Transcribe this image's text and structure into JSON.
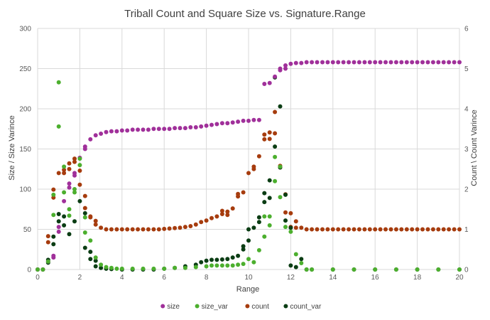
{
  "chart_data": {
    "type": "scatter",
    "title": "Triball Count and Square Size vs. Signature.Range",
    "xlabel": "Range",
    "ylabel_left": "Size / Size Varince",
    "ylabel_right": "Count \\ Count Varince",
    "xlim": [
      0,
      20
    ],
    "ylim_left": [
      0,
      300
    ],
    "ylim_right": [
      0,
      6
    ],
    "x_ticks": [
      "0",
      "2",
      "4",
      "6",
      "8",
      "10",
      "12",
      "14",
      "16",
      "18",
      "20"
    ],
    "y_left_ticks": [
      "0",
      "50",
      "100",
      "150",
      "200",
      "250",
      "300"
    ],
    "y_right_ticks": [
      "0",
      "1",
      "2",
      "3",
      "4",
      "5",
      "6"
    ],
    "grid": true,
    "legend_position": "bottom",
    "series": [
      {
        "name": "size",
        "axis": "left",
        "color": "#a0309a",
        "points": [
          [
            0,
            0
          ],
          [
            0.25,
            0
          ],
          [
            0.5,
            10
          ],
          [
            0.75,
            15
          ],
          [
            0.75,
            17
          ],
          [
            1,
            53
          ],
          [
            1,
            47
          ],
          [
            1.25,
            85
          ],
          [
            1.5,
            102
          ],
          [
            1.5,
            107
          ],
          [
            1.75,
            120
          ],
          [
            1.75,
            117
          ],
          [
            2,
            139
          ],
          [
            2.25,
            150
          ],
          [
            2.25,
            153
          ],
          [
            2.5,
            162
          ],
          [
            2.75,
            167
          ],
          [
            3,
            169
          ],
          [
            3.25,
            171
          ],
          [
            3.5,
            172
          ],
          [
            3.75,
            172
          ],
          [
            4,
            173
          ],
          [
            4.25,
            173
          ],
          [
            4.5,
            174
          ],
          [
            4.75,
            174
          ],
          [
            5,
            174
          ],
          [
            5.25,
            174
          ],
          [
            5.5,
            175
          ],
          [
            5.75,
            175
          ],
          [
            6,
            175
          ],
          [
            6.25,
            175
          ],
          [
            6.5,
            176
          ],
          [
            6.75,
            176
          ],
          [
            7,
            176
          ],
          [
            7.25,
            177
          ],
          [
            7.5,
            177
          ],
          [
            7.75,
            178
          ],
          [
            8,
            179
          ],
          [
            8.25,
            180
          ],
          [
            8.5,
            181
          ],
          [
            8.75,
            182
          ],
          [
            9,
            182
          ],
          [
            9.25,
            183
          ],
          [
            9.5,
            184
          ],
          [
            9.75,
            185
          ],
          [
            10,
            185
          ],
          [
            10.25,
            186
          ],
          [
            10.5,
            186
          ],
          [
            10.75,
            231
          ],
          [
            11,
            232
          ],
          [
            11.25,
            240
          ],
          [
            11.5,
            250
          ],
          [
            11.5,
            248
          ],
          [
            11.75,
            254
          ],
          [
            11.75,
            250
          ],
          [
            12,
            256
          ],
          [
            12.25,
            257
          ],
          [
            12.5,
            257
          ],
          [
            12.75,
            258
          ],
          [
            13,
            258
          ],
          [
            13.25,
            258
          ],
          [
            13.5,
            258
          ],
          [
            13.75,
            258
          ],
          [
            14,
            258
          ],
          [
            14.25,
            258
          ],
          [
            14.5,
            258
          ],
          [
            14.75,
            258
          ],
          [
            15,
            258
          ],
          [
            15.25,
            258
          ],
          [
            15.5,
            258
          ],
          [
            15.75,
            258
          ],
          [
            16,
            258
          ],
          [
            16.25,
            258
          ],
          [
            16.5,
            258
          ],
          [
            16.75,
            258
          ],
          [
            17,
            258
          ],
          [
            17.25,
            258
          ],
          [
            17.5,
            258
          ],
          [
            17.75,
            258
          ],
          [
            18,
            258
          ],
          [
            18.25,
            258
          ],
          [
            18.5,
            258
          ],
          [
            18.75,
            258
          ],
          [
            19,
            258
          ],
          [
            19.25,
            258
          ],
          [
            19.5,
            258
          ],
          [
            19.75,
            258
          ],
          [
            20,
            258
          ]
        ]
      },
      {
        "name": "size_var",
        "axis": "left",
        "color": "#4caf2e",
        "points": [
          [
            0,
            0
          ],
          [
            0.25,
            0
          ],
          [
            0.5,
            10
          ],
          [
            0.75,
            68
          ],
          [
            0.75,
            93
          ],
          [
            1,
            233
          ],
          [
            1,
            178
          ],
          [
            1.25,
            128
          ],
          [
            1.25,
            96
          ],
          [
            1.5,
            75
          ],
          [
            1.5,
            67
          ],
          [
            1.75,
            96
          ],
          [
            1.75,
            100
          ],
          [
            2,
            138
          ],
          [
            2,
            130
          ],
          [
            2.25,
            46
          ],
          [
            2.25,
            65
          ],
          [
            2.5,
            36
          ],
          [
            2.75,
            15
          ],
          [
            3,
            6
          ],
          [
            3.25,
            3
          ],
          [
            3.5,
            2
          ],
          [
            3.75,
            1
          ],
          [
            4,
            1
          ],
          [
            4.5,
            1
          ],
          [
            5,
            1
          ],
          [
            5.5,
            1
          ],
          [
            6,
            1
          ],
          [
            6.5,
            2
          ],
          [
            7,
            2
          ],
          [
            7.5,
            3
          ],
          [
            8,
            4
          ],
          [
            8.25,
            5
          ],
          [
            8.5,
            5
          ],
          [
            8.75,
            5
          ],
          [
            9,
            5
          ],
          [
            9.25,
            5
          ],
          [
            9.5,
            6
          ],
          [
            9.75,
            7
          ],
          [
            10,
            13
          ],
          [
            10.25,
            9
          ],
          [
            10.5,
            24
          ],
          [
            10.75,
            41
          ],
          [
            10.75,
            66
          ],
          [
            11,
            66
          ],
          [
            11,
            55
          ],
          [
            11.25,
            140
          ],
          [
            11.25,
            110
          ],
          [
            11.5,
            128
          ],
          [
            11.5,
            90
          ],
          [
            11.75,
            53
          ],
          [
            12,
            47
          ],
          [
            12.25,
            19
          ],
          [
            12.5,
            8
          ],
          [
            12.75,
            0
          ],
          [
            13,
            0
          ],
          [
            14,
            0
          ],
          [
            15,
            0
          ],
          [
            16,
            0
          ],
          [
            17,
            0
          ],
          [
            18,
            0
          ],
          [
            19,
            0
          ],
          [
            20,
            0
          ]
        ]
      },
      {
        "name": "count",
        "axis": "right",
        "color": "#a63c0e",
        "points": [
          [
            0,
            0
          ],
          [
            0.25,
            0
          ],
          [
            0.5,
            0.83
          ],
          [
            0.5,
            0.68
          ],
          [
            0.75,
            1.99
          ],
          [
            0.75,
            1.79
          ],
          [
            1,
            2.4
          ],
          [
            1.25,
            2.4
          ],
          [
            1.25,
            2.48
          ],
          [
            1.5,
            2.5
          ],
          [
            1.5,
            2.64
          ],
          [
            1.75,
            2.68
          ],
          [
            1.75,
            2.76
          ],
          [
            2,
            2.46
          ],
          [
            2,
            2.11
          ],
          [
            2.25,
            1.83
          ],
          [
            2.25,
            1.53
          ],
          [
            2.5,
            1.32
          ],
          [
            2.5,
            1.3
          ],
          [
            2.75,
            1.21
          ],
          [
            2.75,
            1.12
          ],
          [
            3,
            1.04
          ],
          [
            3.25,
            1.0
          ],
          [
            3.5,
            1.0
          ],
          [
            3.75,
            1.0
          ],
          [
            4,
            1.0
          ],
          [
            4.25,
            1.0
          ],
          [
            4.5,
            1.0
          ],
          [
            4.75,
            1.0
          ],
          [
            5,
            1.0
          ],
          [
            5.25,
            1.0
          ],
          [
            5.5,
            1.0
          ],
          [
            5.75,
            1.0
          ],
          [
            6,
            1.01
          ],
          [
            6.25,
            1.02
          ],
          [
            6.5,
            1.03
          ],
          [
            6.75,
            1.04
          ],
          [
            7,
            1.06
          ],
          [
            7.25,
            1.08
          ],
          [
            7.5,
            1.12
          ],
          [
            7.75,
            1.18
          ],
          [
            8,
            1.22
          ],
          [
            8.25,
            1.28
          ],
          [
            8.5,
            1.32
          ],
          [
            8.75,
            1.38
          ],
          [
            8.75,
            1.46
          ],
          [
            9,
            1.36
          ],
          [
            9,
            1.44
          ],
          [
            9.25,
            1.52
          ],
          [
            9.5,
            1.82
          ],
          [
            9.5,
            1.88
          ],
          [
            9.75,
            1.92
          ],
          [
            10,
            2.4
          ],
          [
            10.25,
            2.5
          ],
          [
            10.25,
            2.56
          ],
          [
            10.5,
            2.82
          ],
          [
            10.75,
            3.24
          ],
          [
            10.75,
            3.36
          ],
          [
            11,
            3.41
          ],
          [
            11,
            3.25
          ],
          [
            11.25,
            3.39
          ],
          [
            11.25,
            3.92
          ],
          [
            11.5,
            2.58
          ],
          [
            11.5,
            2.54
          ],
          [
            11.75,
            1.87
          ],
          [
            11.75,
            1.42
          ],
          [
            12,
            1.4
          ],
          [
            12,
            1.06
          ],
          [
            12.25,
            1.2
          ],
          [
            12.25,
            1.04
          ],
          [
            12.5,
            1.04
          ],
          [
            12.75,
            1.0
          ],
          [
            13,
            1.0
          ],
          [
            13.25,
            1.0
          ],
          [
            13.5,
            1.0
          ],
          [
            13.75,
            1.0
          ],
          [
            14,
            1.0
          ],
          [
            14.25,
            1.0
          ],
          [
            14.5,
            1.0
          ],
          [
            14.75,
            1.0
          ],
          [
            15,
            1.0
          ],
          [
            15.25,
            1.0
          ],
          [
            15.5,
            1.0
          ],
          [
            15.75,
            1.0
          ],
          [
            16,
            1.0
          ],
          [
            16.25,
            1.0
          ],
          [
            16.5,
            1.0
          ],
          [
            16.75,
            1.0
          ],
          [
            17,
            1.0
          ],
          [
            17.25,
            1.0
          ],
          [
            17.5,
            1.0
          ],
          [
            17.75,
            1.0
          ],
          [
            18,
            1.0
          ],
          [
            18.25,
            1.0
          ],
          [
            18.5,
            1.0
          ],
          [
            18.75,
            1.0
          ],
          [
            19,
            1.0
          ],
          [
            19.25,
            1.0
          ],
          [
            19.5,
            1.0
          ],
          [
            19.75,
            1.0
          ],
          [
            20,
            1.0
          ]
        ]
      },
      {
        "name": "count_var",
        "axis": "right",
        "color": "#0b3d14",
        "points": [
          [
            0,
            0
          ],
          [
            0.25,
            0
          ],
          [
            0.5,
            0.24
          ],
          [
            0.5,
            0.17
          ],
          [
            0.75,
            0.63
          ],
          [
            0.75,
            0.82
          ],
          [
            1,
            1.38
          ],
          [
            1,
            1.2
          ],
          [
            1.25,
            1.32
          ],
          [
            1.25,
            1.1
          ],
          [
            1.5,
            0.88
          ],
          [
            1.75,
            1.2
          ],
          [
            2,
            1.7
          ],
          [
            2.25,
            1.4
          ],
          [
            2.25,
            0.54
          ],
          [
            2.5,
            0.44
          ],
          [
            2.5,
            0.26
          ],
          [
            2.75,
            0.22
          ],
          [
            2.75,
            0.08
          ],
          [
            3,
            0.04
          ],
          [
            3.25,
            0.02
          ],
          [
            3.5,
            0.01
          ],
          [
            4,
            0
          ],
          [
            4.5,
            0
          ],
          [
            5,
            0
          ],
          [
            5.5,
            0
          ],
          [
            6,
            0.02
          ],
          [
            6.5,
            0.04
          ],
          [
            7,
            0.08
          ],
          [
            7.5,
            0.12
          ],
          [
            7.75,
            0.18
          ],
          [
            8,
            0.22
          ],
          [
            8.25,
            0.24
          ],
          [
            8.5,
            0.24
          ],
          [
            8.75,
            0.25
          ],
          [
            9,
            0.26
          ],
          [
            9.25,
            0.3
          ],
          [
            9.5,
            0.34
          ],
          [
            9.75,
            0.5
          ],
          [
            9.75,
            0.58
          ],
          [
            10,
            0.72
          ],
          [
            10,
            1.0
          ],
          [
            10.25,
            1.04
          ],
          [
            10.5,
            1.18
          ],
          [
            10.5,
            1.3
          ],
          [
            10.75,
            1.68
          ],
          [
            10.75,
            1.9
          ],
          [
            11,
            2.22
          ],
          [
            11,
            1.78
          ],
          [
            11.25,
            3.06
          ],
          [
            11.25,
            4.78
          ],
          [
            11.5,
            4.06
          ],
          [
            11.5,
            2.54
          ],
          [
            11.75,
            1.86
          ],
          [
            11.75,
            1.22
          ],
          [
            12,
            1.04
          ],
          [
            12,
            0.1
          ],
          [
            12.25,
            0.06
          ],
          [
            12.5,
            0.26
          ],
          [
            12.75,
            0.0
          ],
          [
            13,
            0
          ],
          [
            14,
            0
          ],
          [
            15,
            0
          ],
          [
            16,
            0
          ],
          [
            17,
            0
          ],
          [
            18,
            0
          ],
          [
            19,
            0
          ],
          [
            20,
            0
          ]
        ]
      }
    ]
  }
}
